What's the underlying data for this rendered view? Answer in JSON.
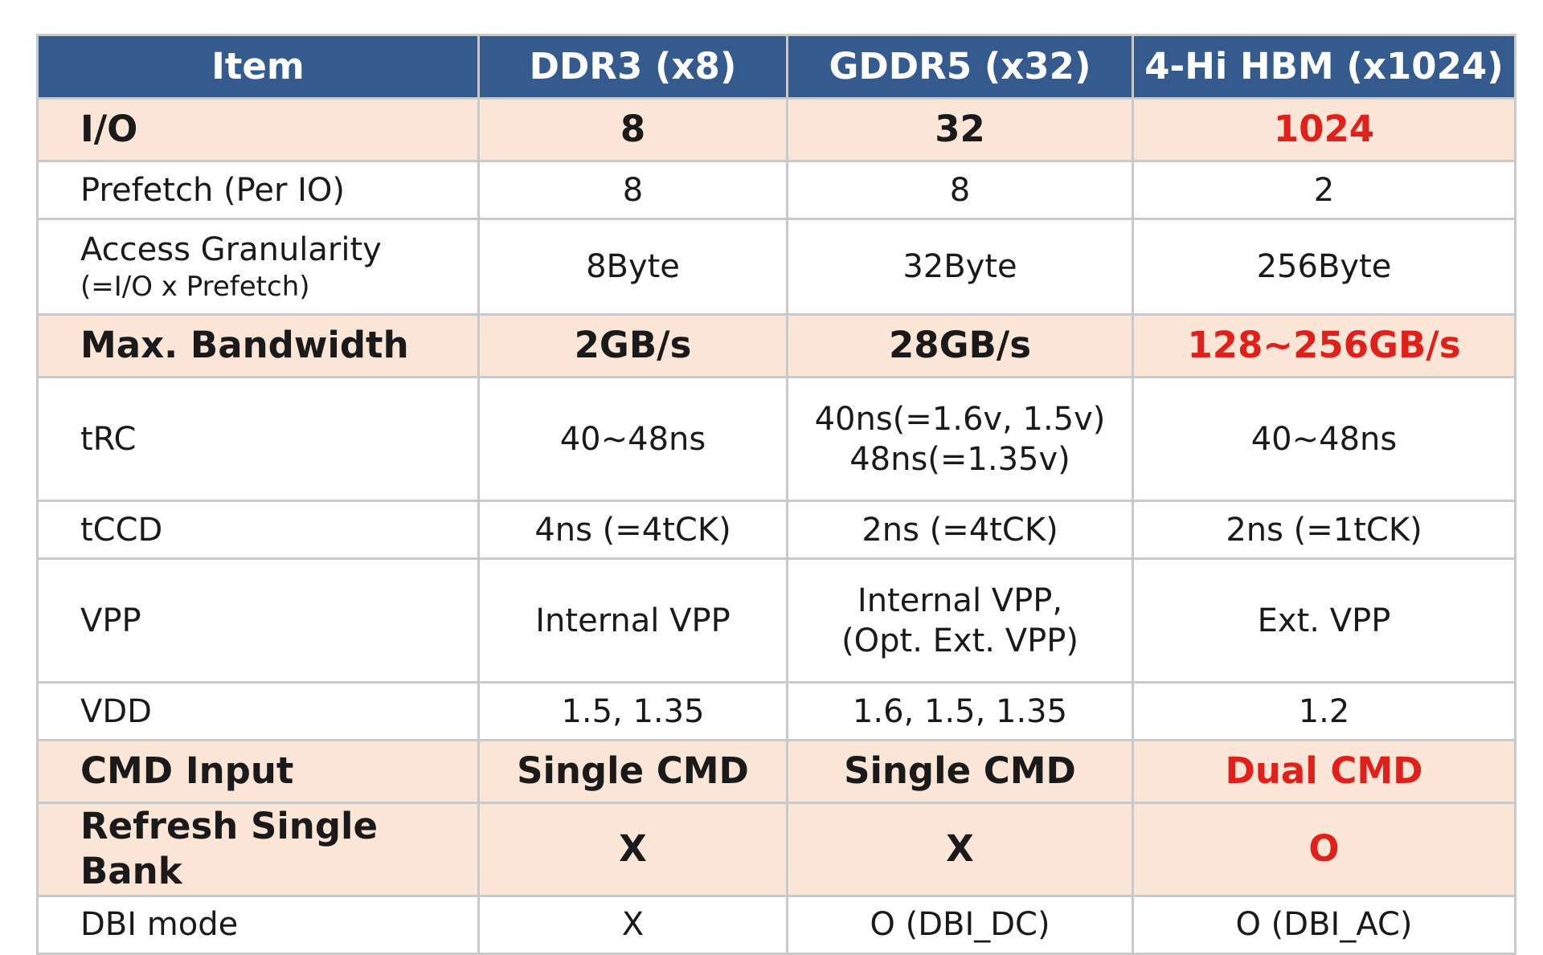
{
  "headers": [
    "Item",
    "DDR3 (x8)",
    "GDDR5 (x32)",
    "4-Hi HBM (x1024)"
  ],
  "rows": [
    {
      "item": "I/O",
      "ddr3": "8",
      "gddr5": "32",
      "hbm": "1024"
    },
    {
      "item": "Prefetch (Per IO)",
      "ddr3": "8",
      "gddr5": "8",
      "hbm": "2"
    },
    {
      "item": "Access Granularity",
      "item_sub": "(=I/O x Prefetch)",
      "ddr3": "8Byte",
      "gddr5": "32Byte",
      "hbm": "256Byte"
    },
    {
      "item": "Max. Bandwidth",
      "ddr3": "2GB/s",
      "gddr5": "28GB/s",
      "hbm": "128~256GB/s"
    },
    {
      "item": "tRC",
      "ddr3": "40~48ns",
      "gddr5": "40ns(=1.6v, 1.5v)",
      "gddr5_line2": "48ns(=1.35v)",
      "hbm": "40~48ns"
    },
    {
      "item": "tCCD",
      "ddr3": "4ns (=4tCK)",
      "gddr5": "2ns (=4tCK)",
      "hbm": "2ns (=1tCK)"
    },
    {
      "item": "VPP",
      "ddr3": "Internal VPP",
      "gddr5": "Internal VPP,",
      "gddr5_line2": "(Opt. Ext. VPP)",
      "hbm": "Ext. VPP"
    },
    {
      "item": "VDD",
      "ddr3": "1.5, 1.35",
      "gddr5": "1.6, 1.5, 1.35",
      "hbm": "1.2"
    },
    {
      "item": "CMD Input",
      "ddr3": "Single CMD",
      "gddr5": "Single CMD",
      "hbm": "Dual CMD"
    },
    {
      "item": "Refresh Single Bank",
      "ddr3": "X",
      "gddr5": "X",
      "hbm": "O"
    },
    {
      "item": "DBI mode",
      "ddr3": "X",
      "gddr5": "O (DBI_DC)",
      "hbm": "O (DBI_AC)"
    }
  ],
  "colors": {
    "header_bg": "#345a8e",
    "highlight_bg": "#fbe5d6",
    "emphasis_red": "#e0201b",
    "grid": "#c9c9c9"
  }
}
